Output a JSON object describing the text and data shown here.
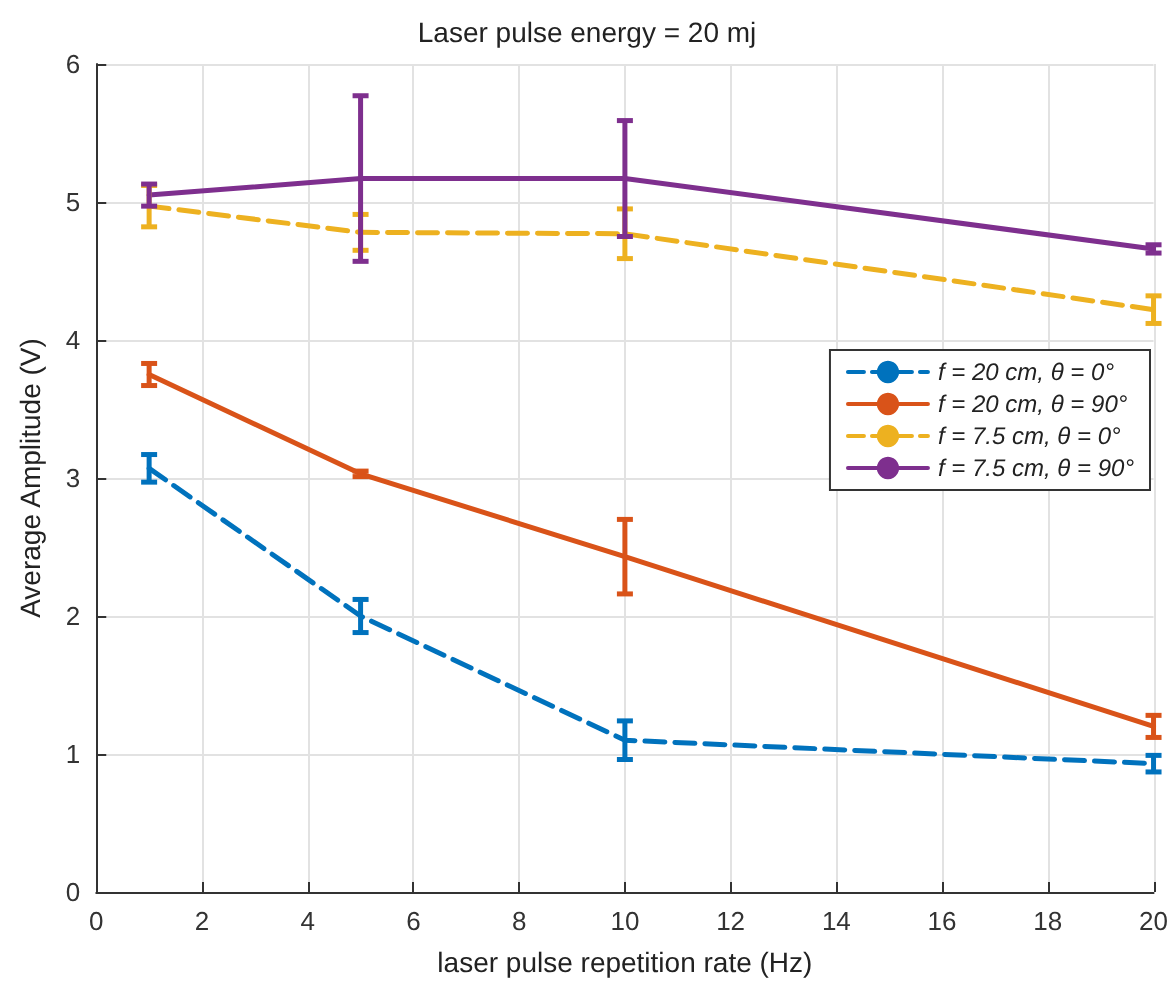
{
  "chart_data": {
    "type": "line",
    "title": "Laser pulse energy = 20 mj",
    "xlabel": "laser pulse repetition rate (Hz)",
    "ylabel": "Average Amplitude (V)",
    "x": [
      1,
      5,
      10,
      20
    ],
    "series": [
      {
        "name": "f = 20 cm, θ = 0°",
        "color": "#0072bd",
        "line_style": "dashed",
        "values": [
          3.07,
          2.0,
          1.1,
          0.93
        ],
        "errors": [
          0.1,
          0.12,
          0.14,
          0.06
        ]
      },
      {
        "name": "f = 20 cm, θ = 90°",
        "color": "#d95319",
        "line_style": "solid",
        "values": [
          3.75,
          3.03,
          2.43,
          1.2
        ],
        "errors": [
          0.08,
          0.02,
          0.27,
          0.08
        ]
      },
      {
        "name": "f = 7.5 cm, θ = 0°",
        "color": "#edb120",
        "line_style": "dashed",
        "values": [
          4.97,
          4.78,
          4.77,
          4.22
        ],
        "errors": [
          0.15,
          0.13,
          0.18,
          0.1
        ]
      },
      {
        "name": "f = 7.5 cm, θ = 90°",
        "color": "#7e2f8e",
        "line_style": "solid",
        "values": [
          5.05,
          5.17,
          5.17,
          4.66
        ],
        "errors": [
          0.08,
          0.6,
          0.42,
          0.03
        ]
      }
    ],
    "xlim": [
      0,
      20
    ],
    "xticks": [
      0,
      2,
      4,
      6,
      8,
      10,
      12,
      14,
      16,
      18,
      20
    ],
    "ylim": [
      0,
      6
    ],
    "yticks": [
      0,
      1,
      2,
      3,
      4,
      5,
      6
    ],
    "grid": true,
    "legend": "right",
    "marker": "none"
  }
}
